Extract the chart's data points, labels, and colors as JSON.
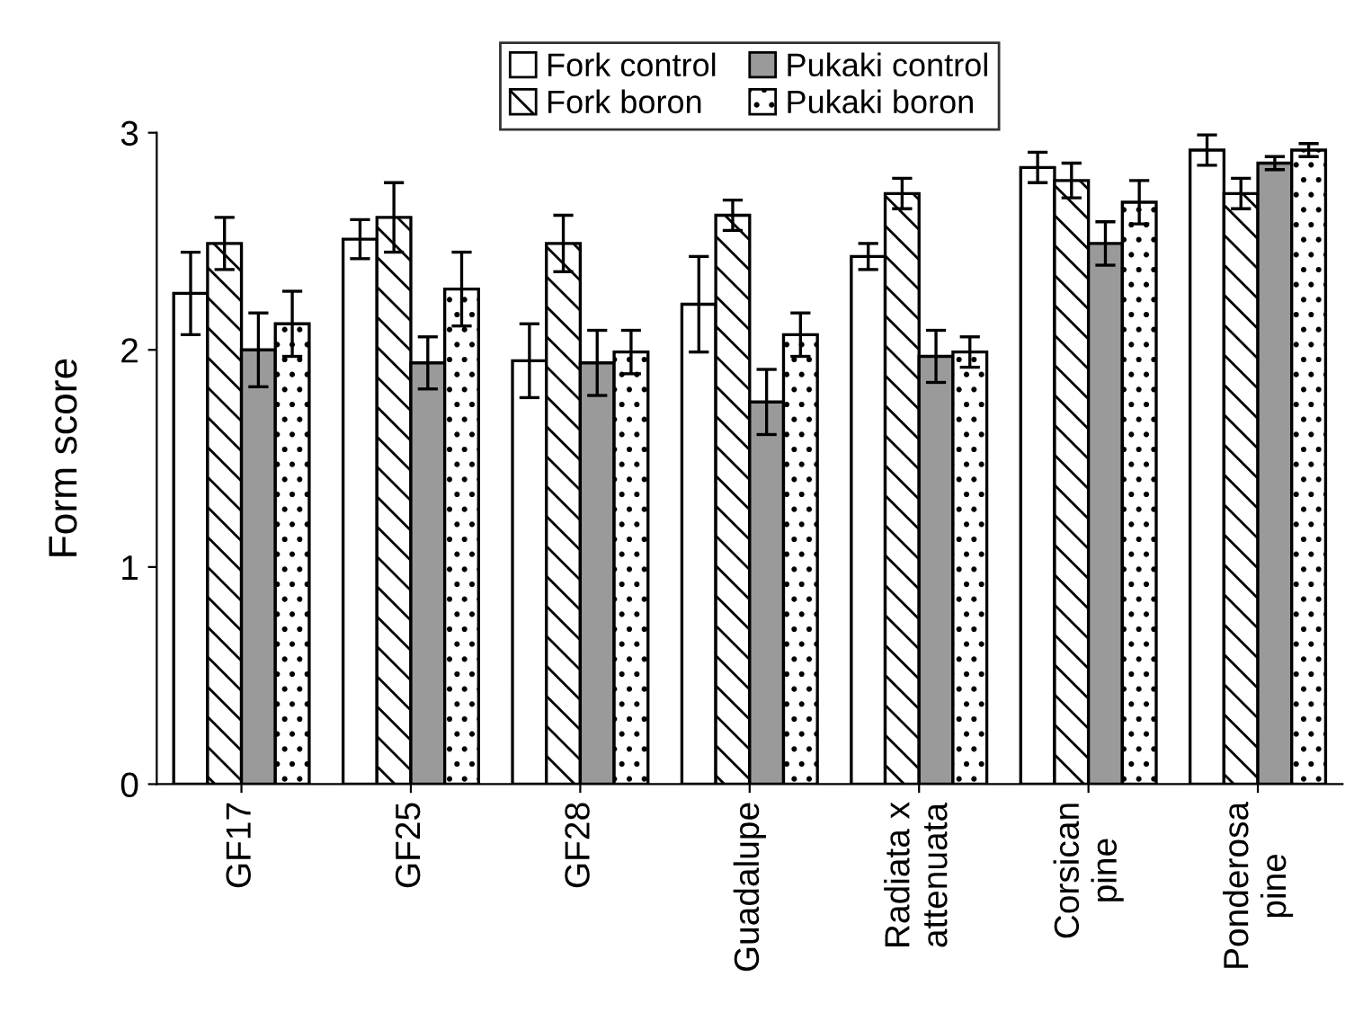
{
  "chart_data": {
    "type": "bar",
    "ylabel": "Form score",
    "categories": [
      "GF17",
      "GF25",
      "GF28",
      "Guadalupe",
      "Radiata x\nattenuata",
      "Corsican\npine",
      "Ponderosa\npine"
    ],
    "series": [
      {
        "name": "Fork control",
        "color": "#ffffff",
        "values": [
          2.26,
          2.51,
          1.95,
          2.21,
          2.43,
          2.84,
          2.92
        ],
        "errors": [
          0.19,
          0.09,
          0.17,
          0.22,
          0.06,
          0.07,
          0.07
        ]
      },
      {
        "name": "Fork boron",
        "color": "#000000",
        "values": [
          2.49,
          2.61,
          2.49,
          2.62,
          2.72,
          2.78,
          2.72
        ],
        "errors": [
          0.12,
          0.16,
          0.13,
          0.07,
          0.07,
          0.08,
          0.07
        ]
      },
      {
        "name": "Pukaki control",
        "color": "#9a9a9a",
        "values": [
          2.0,
          1.94,
          1.94,
          1.76,
          1.97,
          2.49,
          2.86
        ],
        "errors": [
          0.17,
          0.12,
          0.15,
          0.15,
          0.12,
          0.1,
          0.03
        ]
      },
      {
        "name": "Pukaki boron",
        "color": "#000000",
        "values": [
          2.12,
          2.28,
          1.99,
          2.07,
          1.99,
          2.68,
          2.92
        ],
        "errors": [
          0.15,
          0.17,
          0.1,
          0.1,
          0.07,
          0.1,
          0.03
        ]
      }
    ],
    "ylim": [
      0,
      3
    ],
    "yticks": [
      0,
      1,
      2,
      3
    ],
    "grid": false,
    "legend": "top"
  }
}
